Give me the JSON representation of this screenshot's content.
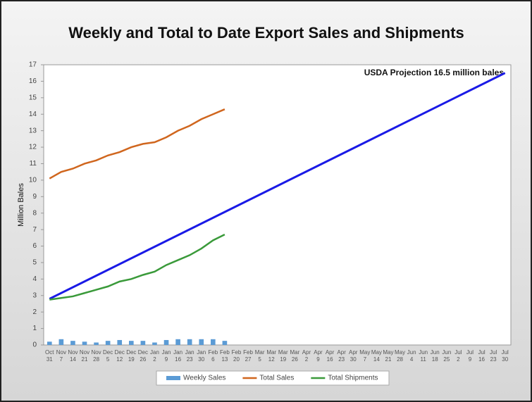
{
  "chart_data": {
    "type": "line",
    "title": "Weekly and Total to Date Export Sales and Shipments",
    "ylabel": "Million Bales",
    "annotation": "USDA Projection  16.5 million bales",
    "categories": [
      "Oct 31",
      "Nov 7",
      "Nov 14",
      "Nov 21",
      "Nov 28",
      "Dec 5",
      "Dec 12",
      "Dec 19",
      "Dec 26",
      "Jan 2",
      "Jan 9",
      "Jan 16",
      "Jan 23",
      "Jan 30",
      "Feb 6",
      "Feb 13",
      "Feb 20",
      "Feb 27",
      "Mar 5",
      "Mar 12",
      "Mar 19",
      "Mar 26",
      "Apr 2",
      "Apr 9",
      "Apr 16",
      "Apr 23",
      "Apr 30",
      "May 7",
      "May 14",
      "May 21",
      "May 28",
      "Jun 4",
      "Jun 11",
      "Jun 18",
      "Jun 25",
      "Jul 2",
      "Jul 9",
      "Jul 16",
      "Jul 23",
      "Jul 30"
    ],
    "series": [
      {
        "name": "Weekly Sales",
        "kind": "bar",
        "color": "#5b9bd5",
        "values": [
          0.2,
          0.35,
          0.25,
          0.2,
          0.15,
          0.25,
          0.3,
          0.25,
          0.25,
          0.15,
          0.3,
          0.35,
          0.35,
          0.35,
          0.35,
          0.25,
          null,
          null,
          null,
          null,
          null,
          null,
          null,
          null,
          null,
          null,
          null,
          null,
          null,
          null,
          null,
          null,
          null,
          null,
          null,
          null,
          null,
          null,
          null,
          null
        ]
      },
      {
        "name": "Total Sales",
        "kind": "line",
        "color": "#d0661e",
        "values": [
          10.1,
          10.5,
          10.7,
          11.0,
          11.2,
          11.5,
          11.7,
          12.0,
          12.2,
          12.3,
          12.6,
          13.0,
          13.3,
          13.7,
          14.0,
          14.3,
          null,
          null,
          null,
          null,
          null,
          null,
          null,
          null,
          null,
          null,
          null,
          null,
          null,
          null,
          null,
          null,
          null,
          null,
          null,
          null,
          null,
          null,
          null,
          null
        ]
      },
      {
        "name": "Total Shipments",
        "kind": "line",
        "color": "#3a9a3a",
        "values": [
          2.75,
          2.85,
          2.95,
          3.15,
          3.35,
          3.55,
          3.85,
          4.0,
          4.25,
          4.45,
          4.85,
          5.15,
          5.45,
          5.85,
          6.35,
          6.7,
          null,
          null,
          null,
          null,
          null,
          null,
          null,
          null,
          null,
          null,
          null,
          null,
          null,
          null,
          null,
          null,
          null,
          null,
          null,
          null,
          null,
          null,
          null,
          null
        ]
      }
    ],
    "projection": {
      "color": "#1a1ae6",
      "x": [
        "Oct 31",
        "Jul 30"
      ],
      "values": [
        2.8,
        16.5
      ]
    },
    "ylim": [
      0,
      17
    ],
    "yticks": [
      0,
      1,
      2,
      3,
      4,
      5,
      6,
      7,
      8,
      9,
      10,
      11,
      12,
      13,
      14,
      15,
      16,
      17
    ],
    "grid": false,
    "legend": "bottom"
  }
}
